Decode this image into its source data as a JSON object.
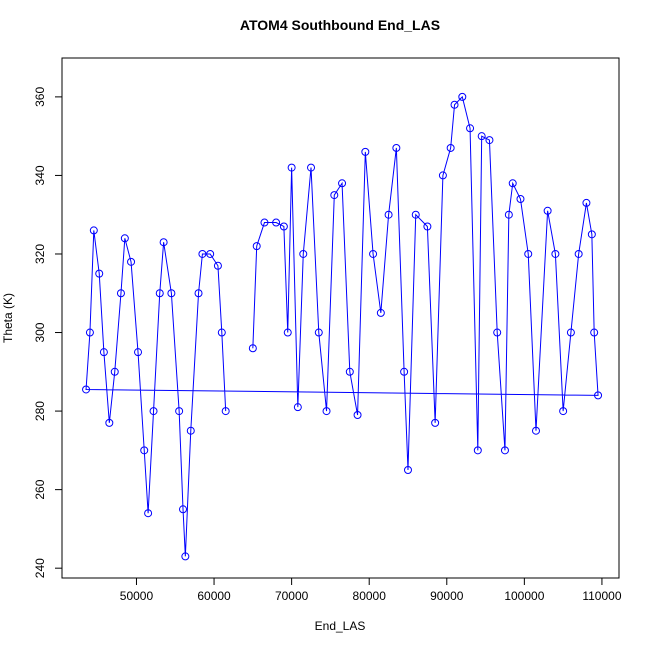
{
  "chart_data": {
    "type": "line",
    "title": "ATOM4 Southbound End_LAS",
    "x_label": "End_LAS",
    "y_label": "Theta (K)",
    "color": "#0000ff",
    "marker": "open-circle",
    "x": [
      65000,
      65500,
      66500,
      68000,
      69000,
      69500,
      70000,
      70800,
      71500,
      72500,
      73500,
      74500,
      75500,
      76500,
      77500,
      78500,
      79500,
      80500,
      81500,
      82500,
      83500,
      84500,
      85000,
      86000,
      87500,
      88500,
      89500,
      90500,
      91000,
      92000,
      93000,
      94000,
      94500,
      95500,
      96500,
      97500,
      98000,
      98500,
      99500,
      100500,
      101500,
      103000,
      104000,
      105000,
      106000,
      107000,
      108000,
      108700,
      109000,
      109500,
      43500,
      44000,
      44500,
      45200,
      45800,
      46500,
      47200,
      48000,
      48500,
      49300,
      50200,
      51000,
      51500,
      52200,
      53000,
      53500,
      54500,
      55500,
      56000,
      56300,
      57000,
      58000,
      58500,
      59500,
      60500,
      61000,
      61500
    ],
    "values": [
      296,
      322,
      328,
      328,
      327,
      300,
      342,
      281,
      320,
      342,
      300,
      280,
      335,
      338,
      290,
      279,
      346,
      320,
      305,
      330,
      347,
      290,
      265,
      330,
      327,
      277,
      340,
      347,
      358,
      360,
      352,
      270,
      350,
      349,
      300,
      270,
      330,
      338,
      334,
      320,
      275,
      331,
      320,
      280,
      300,
      320,
      333,
      325,
      300,
      284,
      285.5,
      300,
      326,
      315,
      295,
      277,
      290,
      310,
      324,
      318,
      295,
      270,
      254,
      280,
      310,
      323,
      310,
      280,
      255,
      243,
      275,
      310,
      320,
      320,
      317,
      300,
      280
    ],
    "xlim": [
      40400,
      112200
    ],
    "ylim": [
      237.5,
      369.9
    ],
    "xticks": [
      50000,
      60000,
      70000,
      80000,
      90000,
      100000,
      110000
    ],
    "yticks": [
      240,
      260,
      280,
      300,
      320,
      340,
      360
    ]
  }
}
